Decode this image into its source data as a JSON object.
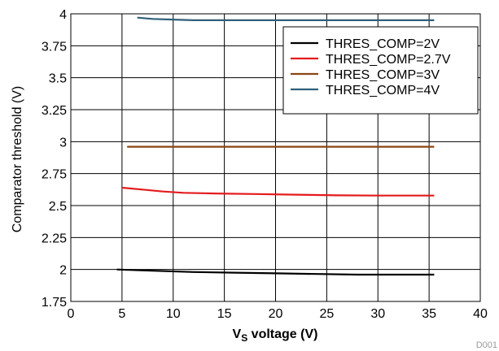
{
  "chart_data": {
    "type": "line",
    "title": "",
    "xlabel_main": "V",
    "xlabel_sub": "S",
    "xlabel_rest": " voltage (V)",
    "ylabel": "Comparator threshold (V)",
    "xlim": [
      0,
      40
    ],
    "ylim": [
      1.75,
      4
    ],
    "xticks": [
      0,
      5,
      10,
      15,
      20,
      25,
      30,
      35,
      40
    ],
    "yticks": [
      1.75,
      2,
      2.25,
      2.5,
      2.75,
      3,
      3.25,
      3.5,
      3.75,
      4
    ],
    "xtick_labels": [
      "0",
      "5",
      "10",
      "15",
      "20",
      "25",
      "30",
      "35",
      "40"
    ],
    "ytick_labels": [
      "1.75",
      "2",
      "2.25",
      "2.5",
      "2.75",
      "3",
      "3.25",
      "3.5",
      "3.75",
      "4"
    ],
    "grid": true,
    "legend_position": "top-right",
    "series": [
      {
        "name": "THRES_COMP=2V",
        "color": "#000000",
        "x": [
          4.5,
          8,
          12,
          16,
          20,
          24,
          28,
          32,
          35.5
        ],
        "y": [
          2.0,
          1.99,
          1.98,
          1.975,
          1.97,
          1.965,
          1.96,
          1.96,
          1.96
        ]
      },
      {
        "name": "THRES_COMP=2.7V",
        "color": "#e41a1c",
        "x": [
          5,
          7,
          9,
          11,
          14,
          18,
          22,
          26,
          30,
          35.5
        ],
        "y": [
          2.64,
          2.625,
          2.61,
          2.6,
          2.595,
          2.59,
          2.585,
          2.58,
          2.578,
          2.578
        ]
      },
      {
        "name": "THRES_COMP=3V",
        "color": "#8b4513",
        "x": [
          5.5,
          10,
          15,
          20,
          25,
          30,
          35.5
        ],
        "y": [
          2.96,
          2.96,
          2.96,
          2.96,
          2.96,
          2.96,
          2.96
        ]
      },
      {
        "name": "THRES_COMP=4V",
        "color": "#2e6079",
        "x": [
          6.5,
          8,
          10,
          12,
          15,
          20,
          25,
          30,
          35.5
        ],
        "y": [
          3.97,
          3.96,
          3.955,
          3.95,
          3.95,
          3.95,
          3.95,
          3.95,
          3.95
        ]
      }
    ]
  },
  "figure_id": "D001"
}
